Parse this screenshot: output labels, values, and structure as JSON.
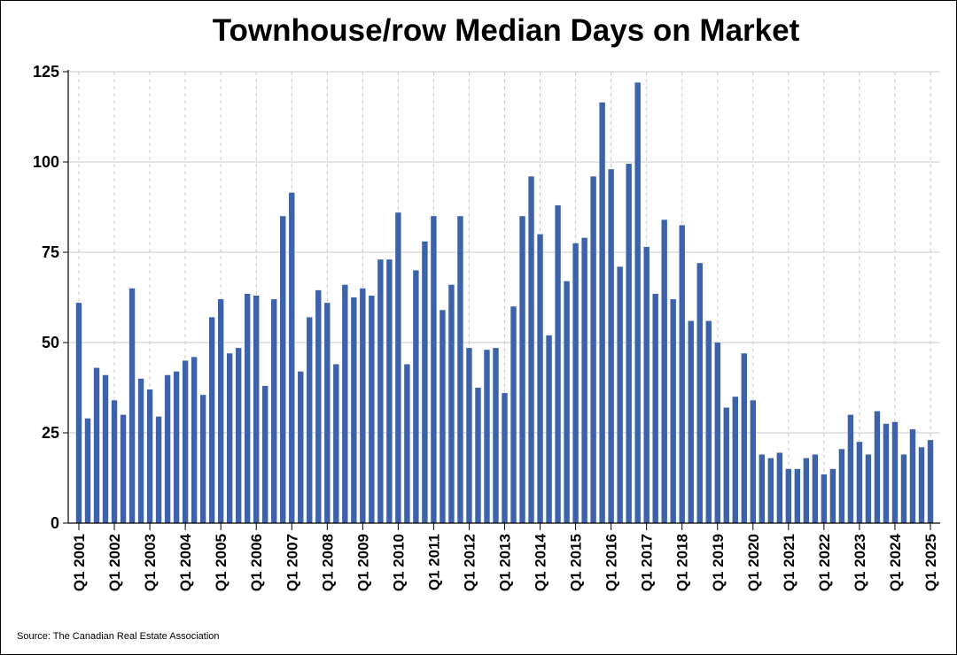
{
  "chart_data": {
    "type": "bar",
    "title": "Townhouse/row Median Days on Market",
    "source": "Source: The Canadian Real Estate Association",
    "xlabel": "",
    "ylabel": "",
    "ylim": [
      0,
      125
    ],
    "yticks": [
      0,
      25,
      50,
      75,
      100,
      125
    ],
    "grid": true,
    "bar_color": "#3d62a9",
    "x_tick_labels": [
      "Q1 2001",
      "Q1 2002",
      "Q1 2003",
      "Q1 2004",
      "Q1 2005",
      "Q1 2006",
      "Q1 2007",
      "Q1 2008",
      "Q1 2009",
      "Q1 2010",
      "Q1 2011",
      "Q1 2012",
      "Q1 2013",
      "Q1 2014",
      "Q1 2015",
      "Q1 2016",
      "Q1 2017",
      "Q1 2018",
      "Q1 2019",
      "Q1 2020",
      "Q1 2021",
      "Q1 2022",
      "Q1 2023",
      "Q1 2024",
      "Q1 2025"
    ],
    "values": [
      61,
      29,
      43,
      41,
      34,
      30,
      65,
      40,
      37,
      29.5,
      41,
      42,
      45,
      46,
      35.5,
      57,
      62,
      47,
      48.5,
      63.5,
      63,
      38,
      62,
      85,
      91.5,
      42,
      57,
      64.5,
      61,
      44,
      66,
      62.5,
      65,
      63,
      73,
      73,
      86,
      44,
      70,
      78,
      85,
      59,
      66,
      85,
      48.5,
      37.5,
      48,
      48.5,
      36,
      60,
      85,
      96,
      80,
      52,
      88,
      67,
      77.5,
      79,
      96,
      116.5,
      98,
      71,
      99.5,
      122,
      76.5,
      63.5,
      84,
      62,
      82.5,
      56,
      72,
      56,
      50,
      32,
      35,
      47,
      34,
      19,
      18,
      19.5,
      15,
      15,
      18,
      19,
      13.5,
      15,
      20.5,
      30,
      22.5,
      19,
      31,
      27.5,
      28,
      19,
      26,
      21,
      23
    ]
  }
}
